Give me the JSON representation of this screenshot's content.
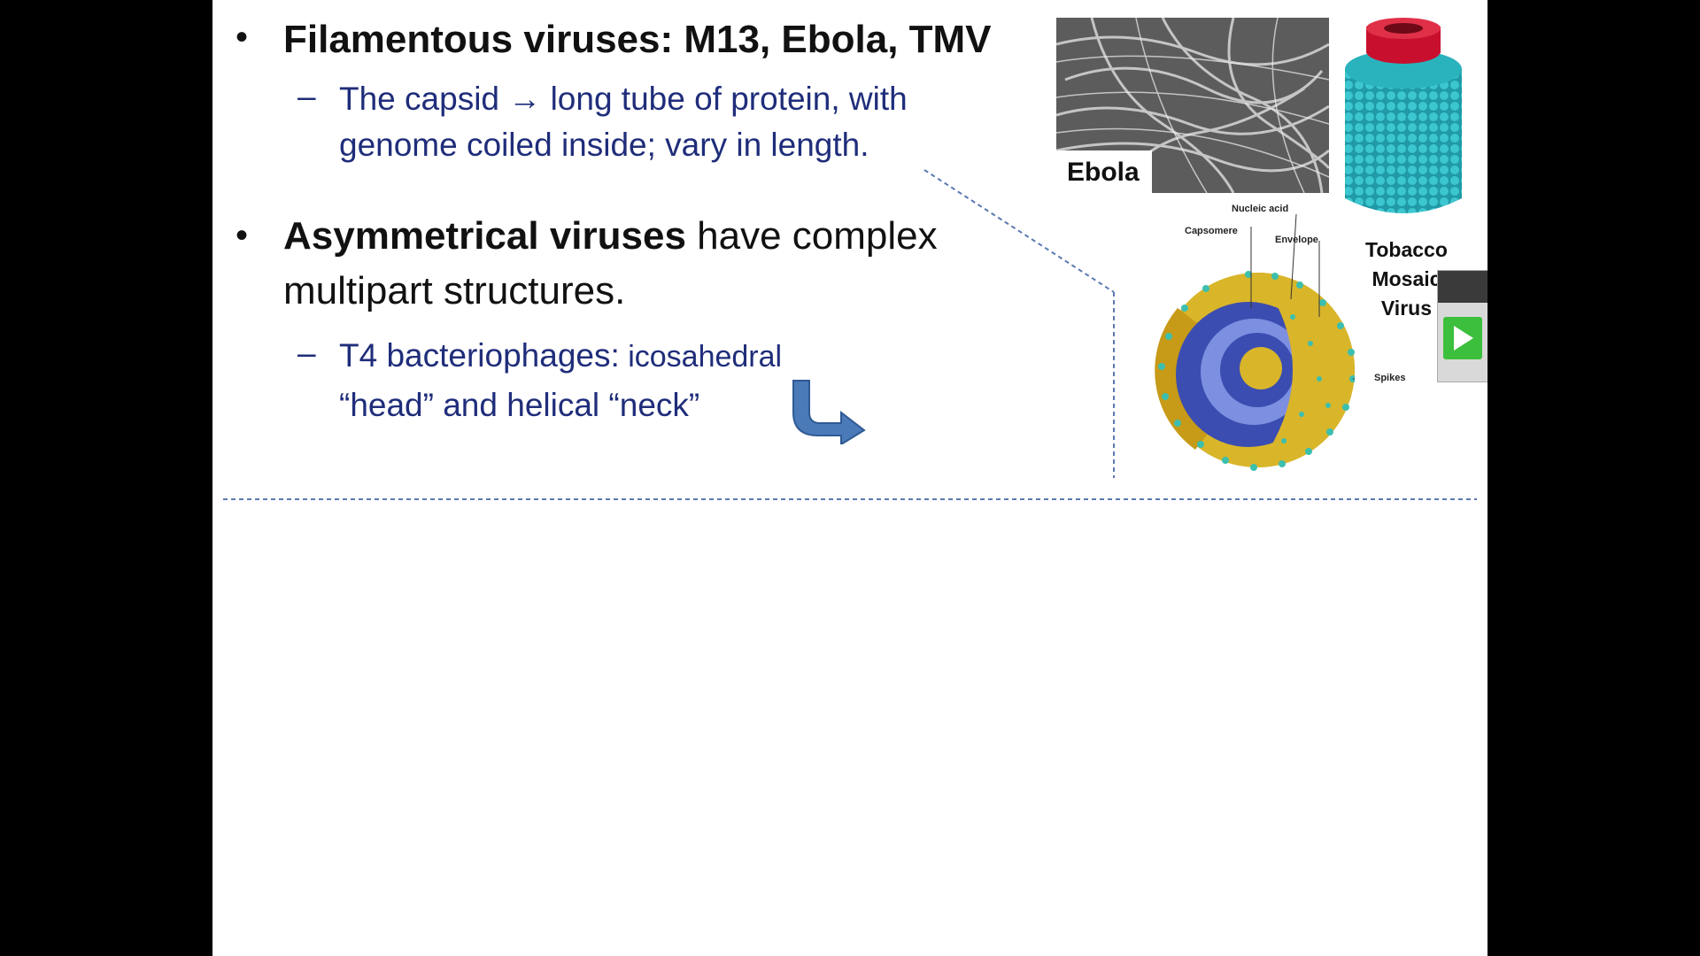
{
  "slide": {
    "bullet1": {
      "marker": "•",
      "text": "Filamentous viruses:  M13, Ebola, TMV",
      "sub": {
        "marker": "–",
        "line1_pre": "The capsid",
        "arrow": "→",
        "line1_post": "long tube of protein, with",
        "line2": "genome coiled inside; vary in length."
      }
    },
    "bullet2": {
      "marker": "•",
      "bold": "Asymmetrical viruses",
      "rest_line1": " have complex",
      "line2": "multipart structures.",
      "sub": {
        "marker": "–",
        "line1_a": "T4 bacteriophages:",
        "line1_b": " icosahedral",
        "line2": "“head” and helical “neck”"
      }
    },
    "images": {
      "ebola_label": "Ebola",
      "tmv_label_1": "Tobacco",
      "tmv_label_2": "Mosaic",
      "tmv_label_3": "Virus",
      "diagram_labels": {
        "nucleic_acid": "Nucleic acid",
        "capsomere": "Capsomere",
        "envelope": "Envelope",
        "spikes": "Spikes"
      }
    }
  },
  "colors": {
    "background": "#000000",
    "slide": "#ffffff",
    "body_text": "#111111",
    "sub_text": "#1f2d7a",
    "arrow_blue": "#4a7ab8",
    "tmv_cyan": "#22aeb8",
    "tmv_red": "#c8102e",
    "virion_yellow": "#d9b52a",
    "virion_blue": "#3b4db0"
  },
  "icons": {
    "bent_arrow": "corner-arrow-right-icon",
    "play": "play-icon"
  }
}
